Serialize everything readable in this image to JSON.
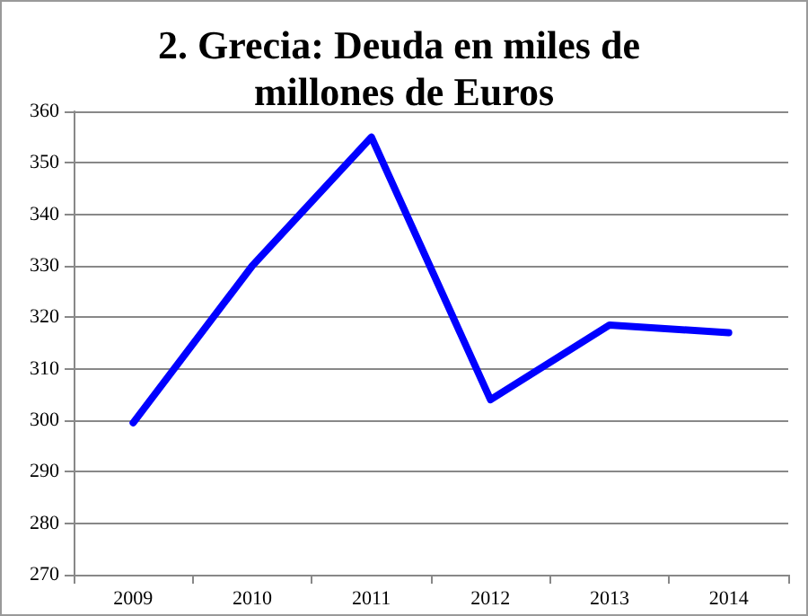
{
  "chart_data": {
    "type": "line",
    "title": "2. Grecia: Deuda en miles de millones de Euros",
    "categories": [
      "2009",
      "2010",
      "2011",
      "2012",
      "2013",
      "2014"
    ],
    "series": [
      {
        "color": "#0000ff",
        "values": [
          299.5,
          330,
          355,
          304,
          318.5,
          317
        ]
      }
    ],
    "ylim": [
      270,
      360
    ],
    "yticks": [
      270,
      280,
      290,
      300,
      310,
      320,
      330,
      340,
      350,
      360
    ],
    "grid": "y",
    "marker": "none",
    "line_style": "solid"
  }
}
